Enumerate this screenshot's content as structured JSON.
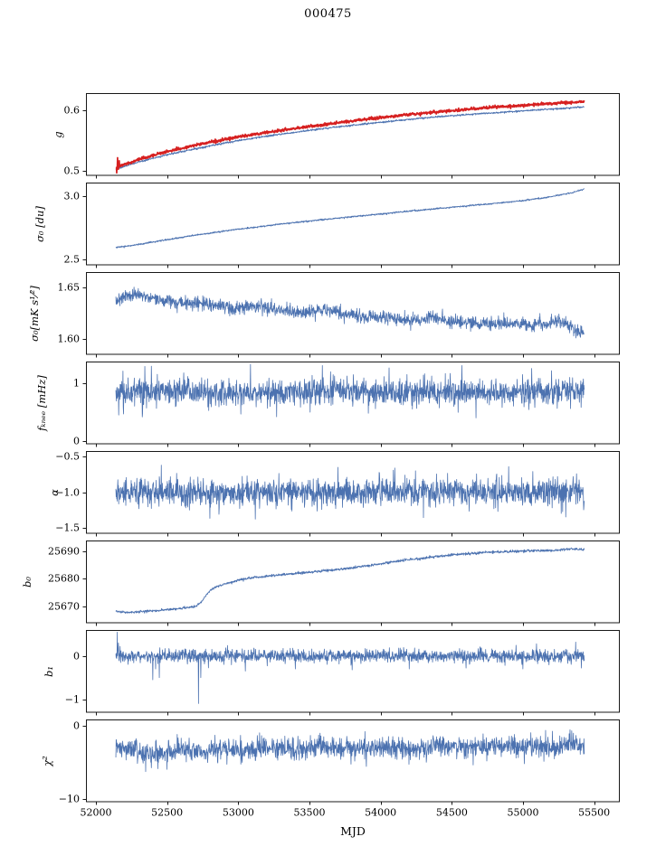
{
  "title": "000475",
  "xlabel": "MJD",
  "colors": {
    "line_blue": "#4c72b0",
    "line_red": "#d62020",
    "axis": "#000000",
    "background": "#ffffff"
  },
  "axis": {
    "xlim": [
      51930,
      55680
    ],
    "xticks": [
      52000,
      52500,
      53000,
      53500,
      54000,
      54500,
      55000,
      55500
    ],
    "xtick_labels": [
      "52000",
      "52500",
      "53000",
      "53500",
      "54000",
      "54500",
      "55000",
      "55500"
    ]
  },
  "layout_hints": {
    "grid": false,
    "shared_x": true,
    "panels": 8,
    "legend": "none"
  },
  "chart_data": [
    {
      "type": "line",
      "name": "gain",
      "ylabel": "g",
      "ylim": [
        0.493,
        0.628
      ],
      "yticks": [
        0.5,
        0.6
      ],
      "ytick_labels": [
        "0.5",
        "0.6"
      ],
      "series": [
        {
          "name": "g-blue",
          "color": "#4c72b0",
          "width": 0.9,
          "noise": 0.0007,
          "trend": [
            [
              52140,
              0.503
            ],
            [
              52300,
              0.515
            ],
            [
              52500,
              0.527
            ],
            [
              52750,
              0.539
            ],
            [
              53000,
              0.55
            ],
            [
              53250,
              0.559
            ],
            [
              53500,
              0.567
            ],
            [
              53750,
              0.574
            ],
            [
              54000,
              0.58
            ],
            [
              54250,
              0.586
            ],
            [
              54500,
              0.591
            ],
            [
              54750,
              0.595
            ],
            [
              55000,
              0.599
            ],
            [
              55200,
              0.602
            ],
            [
              55430,
              0.605
            ]
          ]
        },
        {
          "name": "g-red",
          "color": "#d62020",
          "width": 1.7,
          "noise": 0.0011,
          "trend": [
            [
              52140,
              0.506
            ],
            [
              52300,
              0.519
            ],
            [
              52500,
              0.532
            ],
            [
              52750,
              0.545
            ],
            [
              53000,
              0.556
            ],
            [
              53250,
              0.565
            ],
            [
              53500,
              0.573
            ],
            [
              53750,
              0.581
            ],
            [
              54000,
              0.588
            ],
            [
              54250,
              0.594
            ],
            [
              54500,
              0.599
            ],
            [
              54750,
              0.604
            ],
            [
              55000,
              0.608
            ],
            [
              55200,
              0.611
            ],
            [
              55430,
              0.614
            ]
          ],
          "spikes": [
            [
              52146,
              0.497
            ],
            [
              52152,
              0.522
            ],
            [
              52158,
              0.503
            ],
            [
              52164,
              0.517
            ]
          ]
        }
      ]
    },
    {
      "type": "line",
      "name": "white-noise-du",
      "ylabel": "σ₀ [du]",
      "ylim": [
        2.46,
        3.11
      ],
      "yticks": [
        2.5,
        3.0
      ],
      "ytick_labels": [
        "2.5",
        "3.0"
      ],
      "series": [
        {
          "name": "sigma0-du",
          "color": "#4c72b0",
          "width": 0.9,
          "noise": 0.0028,
          "trend": [
            [
              52140,
              2.598
            ],
            [
              52250,
              2.612
            ],
            [
              52400,
              2.64
            ],
            [
              52550,
              2.668
            ],
            [
              52700,
              2.695
            ],
            [
              52850,
              2.718
            ],
            [
              53000,
              2.742
            ],
            [
              53150,
              2.762
            ],
            [
              53300,
              2.782
            ],
            [
              53450,
              2.8
            ],
            [
              53600,
              2.818
            ],
            [
              53800,
              2.84
            ],
            [
              54000,
              2.862
            ],
            [
              54200,
              2.884
            ],
            [
              54400,
              2.905
            ],
            [
              54600,
              2.925
            ],
            [
              54800,
              2.945
            ],
            [
              55000,
              2.968
            ],
            [
              55150,
              2.99
            ],
            [
              55250,
              3.01
            ],
            [
              55350,
              3.03
            ],
            [
              55430,
              3.06
            ]
          ]
        }
      ]
    },
    {
      "type": "line",
      "name": "white-noise-mK",
      "ylabel": "σ₀[mK s¹⁄²]",
      "ylim": [
        1.585,
        1.665
      ],
      "yticks": [
        1.6,
        1.65
      ],
      "ytick_labels": [
        "1.60",
        "1.65"
      ],
      "series": [
        {
          "name": "sigma0-mK",
          "color": "#4c72b0",
          "width": 0.8,
          "noise": 0.0032,
          "trend": [
            [
              52140,
              1.636
            ],
            [
              52200,
              1.641
            ],
            [
              52280,
              1.644
            ],
            [
              52360,
              1.641
            ],
            [
              52450,
              1.638
            ],
            [
              52550,
              1.636
            ],
            [
              52650,
              1.634
            ],
            [
              52750,
              1.636
            ],
            [
              52850,
              1.632
            ],
            [
              53000,
              1.63
            ],
            [
              53150,
              1.632
            ],
            [
              53300,
              1.628
            ],
            [
              53450,
              1.626
            ],
            [
              53600,
              1.628
            ],
            [
              53750,
              1.624
            ],
            [
              53900,
              1.622
            ],
            [
              54050,
              1.62
            ],
            [
              54200,
              1.618
            ],
            [
              54350,
              1.62
            ],
            [
              54500,
              1.617
            ],
            [
              54650,
              1.616
            ],
            [
              54800,
              1.615
            ],
            [
              54950,
              1.614
            ],
            [
              55100,
              1.613
            ],
            [
              55250,
              1.617
            ],
            [
              55350,
              1.611
            ],
            [
              55430,
              1.605
            ]
          ]
        }
      ]
    },
    {
      "type": "line",
      "name": "knee-frequency",
      "ylabel": "fₖₙₑₑ [mHz]",
      "ylim": [
        -0.05,
        1.38
      ],
      "yticks": [
        0,
        1
      ],
      "ytick_labels": [
        "0",
        "1"
      ],
      "series": [
        {
          "name": "fknee",
          "color": "#4c72b0",
          "width": 0.8,
          "noise": 0.115,
          "trend": [
            [
              52140,
              0.85
            ],
            [
              52600,
              0.87
            ],
            [
              53100,
              0.84
            ],
            [
              53600,
              0.87
            ],
            [
              54100,
              0.85
            ],
            [
              54600,
              0.86
            ],
            [
              55100,
              0.84
            ],
            [
              55430,
              0.86
            ]
          ],
          "spikes": [
            [
              52160,
              0.45
            ],
            [
              52390,
              1.3
            ],
            [
              53085,
              1.33
            ],
            [
              53270,
              0.42
            ],
            [
              53590,
              1.31
            ],
            [
              54060,
              1.27
            ],
            [
              54570,
              1.31
            ],
            [
              54670,
              0.4
            ],
            [
              55060,
              1.26
            ],
            [
              55200,
              1.22
            ]
          ]
        }
      ]
    },
    {
      "type": "line",
      "name": "alpha",
      "ylabel": "α",
      "ylim": [
        -1.58,
        -0.42
      ],
      "yticks": [
        -1.5,
        -1.0,
        -0.5
      ],
      "ytick_labels": [
        "−1.5",
        "−1.0",
        "−0.5"
      ],
      "series": [
        {
          "name": "alpha",
          "color": "#4c72b0",
          "width": 0.8,
          "noise": 0.095,
          "trend": [
            [
              52140,
              -1.0
            ],
            [
              53000,
              -1.01
            ],
            [
              54000,
              -0.99
            ],
            [
              55430,
              -1.0
            ]
          ],
          "spikes": [
            [
              52460,
              -0.62
            ],
            [
              52800,
              -1.37
            ],
            [
              53120,
              -1.38
            ],
            [
              53700,
              -0.65
            ],
            [
              54100,
              -0.66
            ],
            [
              54300,
              -1.36
            ],
            [
              54900,
              -0.64
            ],
            [
              55300,
              -1.35
            ]
          ]
        }
      ]
    },
    {
      "type": "line",
      "name": "baseline-offset",
      "ylabel": "b₀",
      "ylim": [
        25664,
        25694
      ],
      "yticks": [
        25670,
        25680,
        25690
      ],
      "ytick_labels": [
        "25670",
        "25680",
        "25690"
      ],
      "series": [
        {
          "name": "b0",
          "color": "#4c72b0",
          "width": 0.9,
          "noise": 0.22,
          "trend": [
            [
              52140,
              25668.3
            ],
            [
              52200,
              25667.8
            ],
            [
              52300,
              25668.0
            ],
            [
              52450,
              25668.5
            ],
            [
              52600,
              25669.2
            ],
            [
              52700,
              25670.0
            ],
            [
              52740,
              25671.5
            ],
            [
              52780,
              25674.5
            ],
            [
              52820,
              25676.5
            ],
            [
              52900,
              25678.0
            ],
            [
              53000,
              25679.5
            ],
            [
              53100,
              25680.5
            ],
            [
              53250,
              25681.2
            ],
            [
              53400,
              25682.0
            ],
            [
              53600,
              25683.0
            ],
            [
              53800,
              25684.0
            ],
            [
              54000,
              25685.5
            ],
            [
              54200,
              25687.0
            ],
            [
              54400,
              25688.2
            ],
            [
              54600,
              25689.2
            ],
            [
              54800,
              25689.8
            ],
            [
              55000,
              25690.2
            ],
            [
              55150,
              25690.3
            ],
            [
              55250,
              25690.5
            ],
            [
              55350,
              25691.0
            ],
            [
              55430,
              25690.6
            ]
          ]
        }
      ]
    },
    {
      "type": "line",
      "name": "baseline-slope",
      "ylabel": "b₁",
      "ylim": [
        -1.3,
        0.6
      ],
      "yticks": [
        -1,
        0
      ],
      "ytick_labels": [
        "−1",
        "0"
      ],
      "series": [
        {
          "name": "b1",
          "color": "#4c72b0",
          "width": 0.8,
          "noise": 0.075,
          "trend": [
            [
              52140,
              0.0
            ],
            [
              55430,
              0.0
            ]
          ],
          "spikes": [
            [
              52150,
              0.55
            ],
            [
              52158,
              0.3
            ],
            [
              52170,
              0.22
            ],
            [
              52400,
              -0.55
            ],
            [
              52420,
              -0.3
            ],
            [
              52445,
              -0.5
            ],
            [
              52720,
              -1.1
            ],
            [
              52736,
              -0.5
            ],
            [
              53050,
              -0.35
            ],
            [
              53400,
              -0.3
            ],
            [
              53800,
              -0.32
            ],
            [
              54200,
              -0.3
            ],
            [
              54600,
              -0.28
            ],
            [
              55000,
              -0.3
            ],
            [
              55370,
              0.32
            ],
            [
              55410,
              -0.28
            ]
          ]
        }
      ]
    },
    {
      "type": "line",
      "name": "chi-squared",
      "ylabel": "χ²",
      "ylim": [
        -10.4,
        0.8
      ],
      "yticks": [
        -10,
        0
      ],
      "ytick_labels": [
        "−10",
        "0"
      ],
      "series": [
        {
          "name": "chi2",
          "color": "#4c72b0",
          "width": 0.8,
          "noise": 0.72,
          "trend": [
            [
              52140,
              -3.0
            ],
            [
              52300,
              -3.6
            ],
            [
              52450,
              -4.0
            ],
            [
              52600,
              -3.2
            ],
            [
              52750,
              -3.8
            ],
            [
              52900,
              -3.0
            ],
            [
              53050,
              -3.5
            ],
            [
              53200,
              -2.9
            ],
            [
              53400,
              -3.3
            ],
            [
              53600,
              -2.8
            ],
            [
              53800,
              -3.2
            ],
            [
              54000,
              -2.9
            ],
            [
              54200,
              -3.3
            ],
            [
              54400,
              -2.8
            ],
            [
              54600,
              -3.1
            ],
            [
              54800,
              -2.7
            ],
            [
              55000,
              -3.0
            ],
            [
              55200,
              -2.8
            ],
            [
              55350,
              -2.6
            ],
            [
              55430,
              -3.0
            ]
          ],
          "spikes": [
            [
              52350,
              -6.3
            ],
            [
              52500,
              -6.0
            ],
            [
              53900,
              -5.6
            ],
            [
              54650,
              -5.4
            ],
            [
              55330,
              -0.6
            ]
          ]
        }
      ]
    }
  ]
}
